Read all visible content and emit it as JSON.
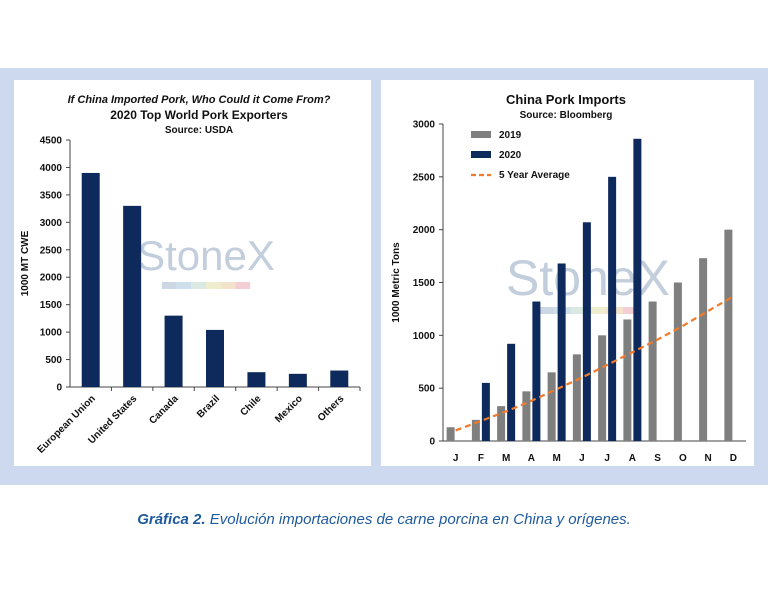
{
  "caption": {
    "label": "Gráfica 2.",
    "text": " Evolución importaciones de carne porcina en China y orígenes."
  },
  "watermark": "StoneX",
  "colors": {
    "navy": "#0e2a5c",
    "gray": "#7f7f7f",
    "orange": "#f07a2a",
    "frame": "#cdd9ee"
  },
  "chart_data": [
    {
      "type": "bar",
      "title": "If China Imported Pork, Who Could it Come From?",
      "subtitle": "2020 Top World Pork Exporters",
      "source": "Source: USDA",
      "ylabel": "1000 MT CWE",
      "xlabel": "",
      "ylim": [
        0,
        4500
      ],
      "yticks": [
        0,
        500,
        1000,
        1500,
        2000,
        2500,
        3000,
        3500,
        4000,
        4500
      ],
      "categories": [
        "European Union",
        "United States",
        "Canada",
        "Brazil",
        "Chile",
        "Mexico",
        "Others"
      ],
      "values": [
        3900,
        3300,
        1300,
        1040,
        270,
        240,
        300
      ],
      "grid": false
    },
    {
      "type": "bar",
      "title": "China Pork Imports",
      "source": "Source: Bloomberg",
      "ylabel": "1000 Metric Tons",
      "xlabel": "",
      "ylim": [
        0,
        3000
      ],
      "yticks": [
        0,
        500,
        1000,
        1500,
        2000,
        2500,
        3000
      ],
      "categories": [
        "J",
        "F",
        "M",
        "A",
        "M",
        "J",
        "J",
        "A",
        "S",
        "O",
        "N",
        "D"
      ],
      "series": [
        {
          "name": "2019",
          "values": [
            130,
            200,
            330,
            470,
            650,
            820,
            1000,
            1150,
            1320,
            1500,
            1730,
            2000
          ]
        },
        {
          "name": "2020",
          "values": [
            null,
            550,
            920,
            1320,
            1680,
            2070,
            2500,
            2860,
            null,
            null,
            null,
            null
          ]
        }
      ],
      "line": {
        "name": "5 Year Average",
        "values": [
          100,
          190,
          280,
          380,
          490,
          600,
          720,
          840,
          960,
          1090,
          1230,
          1370
        ]
      },
      "legend": "top-left",
      "grid": false
    }
  ]
}
